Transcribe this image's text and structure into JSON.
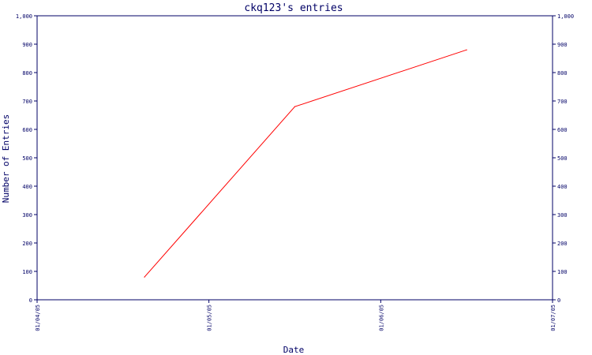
{
  "chart_data": {
    "type": "line",
    "title": "ckq123's entries",
    "xlabel": "Date",
    "ylabel": "Number of Entries",
    "ylim": [
      0,
      1000
    ],
    "y_ticks": [
      0,
      100,
      200,
      300,
      400,
      500,
      600,
      700,
      800,
      900,
      1000
    ],
    "y_tick_labels": [
      "0",
      "100",
      "200",
      "300",
      "400",
      "500",
      "600",
      "700",
      "800",
      "900",
      "1,000"
    ],
    "xlim": [
      "2005-01-04",
      "2005-01-07"
    ],
    "x_ticks": [
      "2005-01-04",
      "2005-01-05",
      "2005-01-06",
      "2005-01-07"
    ],
    "x_tick_labels": [
      "01/04/05",
      "01/05/05",
      "01/06/05",
      "01/07/05"
    ],
    "grid": false,
    "colors": {
      "axis": "#000066",
      "line": "#ff0000"
    },
    "series": [
      {
        "x": [
          "2005-01-04 15:00",
          "2005-01-05 12:00",
          "2005-01-06 12:00"
        ],
        "values": [
          80,
          680,
          880
        ]
      }
    ]
  }
}
